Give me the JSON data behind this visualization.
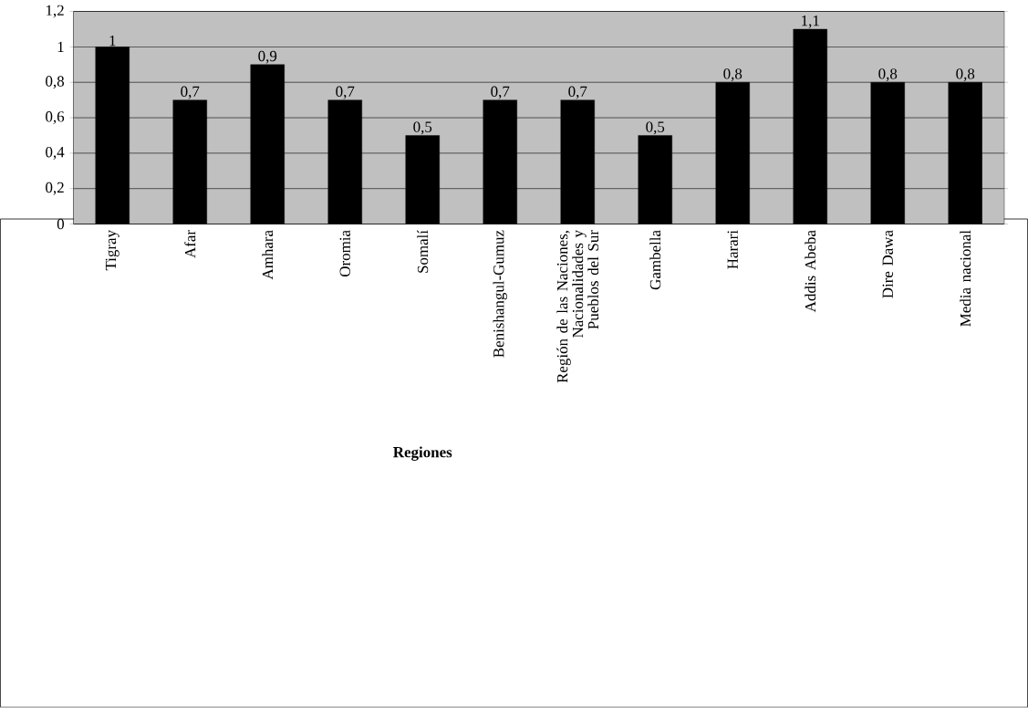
{
  "chart_data": {
    "type": "bar",
    "xlabel": "Regiones",
    "categories": [
      "Tigray",
      "Afar",
      "Amhara",
      "Oromia",
      "Somalí",
      "Benishangul-Gumuz",
      "Región de las Naciones, Nacionalidades y Pueblos del Sur",
      "Gambella",
      "Harari",
      "Addis Abeba",
      "Dire Dawa",
      "Media nacional"
    ],
    "values": [
      1,
      0.7,
      0.9,
      0.7,
      0.5,
      0.7,
      0.7,
      0.5,
      0.8,
      1.1,
      0.8,
      0.8
    ],
    "value_labels": [
      "1",
      "0,7",
      "0,9",
      "0,7",
      "0,5",
      "0,7",
      "0,7",
      "0,5",
      "0,8",
      "1,1",
      "0,8",
      "0,8"
    ],
    "color": "#000000",
    "ylim": [
      0,
      1.2
    ],
    "yticks": [
      0,
      {
        "value": 0.2,
        "label": "0,2"
      },
      {
        "value": 0.4,
        "label": "0,4"
      },
      {
        "value": 0.6,
        "label": "0,6"
      },
      {
        "value": 0.8,
        "label": "0,8"
      },
      1,
      {
        "value": 1.2,
        "label": "1,2"
      }
    ],
    "grid": "y"
  }
}
